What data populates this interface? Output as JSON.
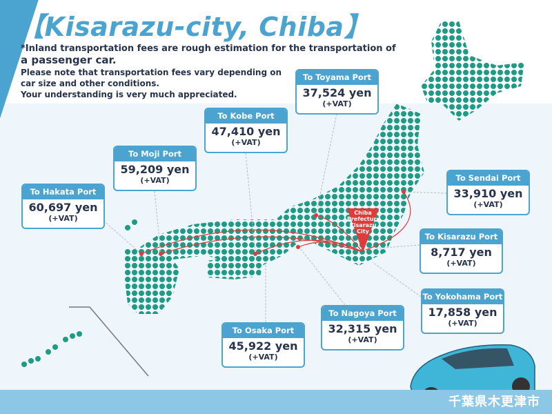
{
  "title": "【Kisarazu-city, Chiba】",
  "notes": {
    "line1": "*Inland transportation fees are rough estimation for the transportation of",
    "line2": "a passenger car.",
    "line3": "Please note that transportation fees vary depending on car size and other conditions.",
    "line4": "Your understanding is very much appreciated."
  },
  "pin": {
    "line1": "Chiba",
    "line2": "Prefecture",
    "line3": "Kisarazu",
    "line4": "City"
  },
  "ports": [
    {
      "name": "To Toyama Port",
      "price": "37,524 yen",
      "vat": "(+VAT)"
    },
    {
      "name": "To Kobe Port",
      "price": "47,410 yen",
      "vat": "(+VAT)"
    },
    {
      "name": "To Moji Port",
      "price": "59,209 yen",
      "vat": "(+VAT)"
    },
    {
      "name": "To Hakata Port",
      "price": "60,697 yen",
      "vat": "(+VAT)"
    },
    {
      "name": "To Sendai Port",
      "price": "33,910 yen",
      "vat": "(+VAT)"
    },
    {
      "name": "To Kisarazu Port",
      "price": "8,717 yen",
      "vat": "(+VAT)"
    },
    {
      "name": "To Yokohama Port",
      "price": "17,858 yen",
      "vat": "(+VAT)"
    },
    {
      "name": "To Nagoya Port",
      "price": "32,315 yen",
      "vat": "(+VAT)"
    },
    {
      "name": "To Osaka Port",
      "price": "45,922 yen",
      "vat": "(+VAT)"
    }
  ],
  "footer_text": "千葉県木更津市",
  "colors": {
    "accent": "#4ba3cf",
    "map_dots": "#1f9a84",
    "route": "#e03a3a",
    "text": "#27334d"
  }
}
